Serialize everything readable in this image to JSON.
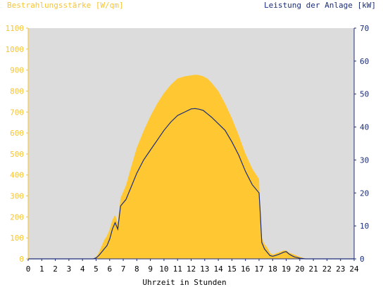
{
  "chart_data": {
    "type": "area",
    "left_axis_title": "Bestrahlungsstärke [W/qm]",
    "right_axis_title": "Leistung der Anlage [kW]",
    "xlabel": "Uhrzeit in Stunden",
    "x_range": [
      0,
      24
    ],
    "x_ticks": [
      0,
      1,
      2,
      3,
      4,
      5,
      6,
      7,
      8,
      9,
      10,
      11,
      12,
      13,
      14,
      15,
      16,
      17,
      18,
      19,
      20,
      21,
      22,
      23,
      24
    ],
    "y_left_range": [
      0,
      1100
    ],
    "y_left_ticks": [
      0,
      100,
      200,
      300,
      400,
      500,
      600,
      700,
      800,
      900,
      1000,
      1100
    ],
    "y_right_range": [
      0,
      70
    ],
    "y_right_ticks": [
      0,
      10,
      20,
      30,
      40,
      50,
      60,
      70
    ],
    "grid": false,
    "colors": {
      "irradiance": "#ffc832",
      "power": "#1b2d78",
      "plot_bg": "#dcdcdc"
    },
    "series": [
      {
        "name": "Bestrahlungsstärke [W/qm]",
        "axis": "left",
        "type": "area",
        "x": [
          0,
          4.8,
          5.0,
          5.2,
          5.4,
          5.6,
          5.8,
          6.0,
          6.2,
          6.4,
          6.6,
          6.8,
          7.0,
          7.2,
          7.5,
          8.0,
          8.5,
          9.0,
          9.5,
          10.0,
          10.5,
          11.0,
          11.5,
          12.0,
          12.3,
          12.6,
          12.9,
          13.2,
          13.5,
          14.0,
          14.5,
          15.0,
          15.5,
          16.0,
          16.5,
          17.0,
          17.1,
          17.2,
          17.4,
          17.6,
          17.8,
          18.0,
          18.2,
          18.4,
          18.6,
          18.8,
          19.0,
          19.2,
          19.4,
          19.6,
          19.8,
          20.0,
          20.2,
          20.4,
          20.6,
          21.0,
          24
        ],
        "values": [
          0,
          0,
          10,
          30,
          60,
          90,
          110,
          140,
          185,
          210,
          170,
          290,
          320,
          350,
          420,
          530,
          610,
          680,
          740,
          790,
          830,
          860,
          870,
          875,
          878,
          876,
          870,
          860,
          840,
          800,
          740,
          670,
          590,
          500,
          430,
          380,
          180,
          100,
          70,
          55,
          30,
          20,
          25,
          30,
          35,
          40,
          40,
          30,
          25,
          20,
          15,
          10,
          5,
          2,
          0,
          0,
          0
        ]
      },
      {
        "name": "Leistung der Anlage [kW]",
        "axis": "right",
        "type": "line",
        "x": [
          0,
          4.8,
          5.0,
          5.2,
          5.4,
          5.6,
          5.8,
          6.0,
          6.2,
          6.4,
          6.6,
          6.8,
          7.0,
          7.2,
          7.5,
          8.0,
          8.5,
          9.0,
          9.5,
          10.0,
          10.5,
          11.0,
          11.5,
          12.0,
          12.3,
          12.6,
          12.9,
          13.2,
          13.5,
          14.0,
          14.5,
          15.0,
          15.5,
          16.0,
          16.5,
          17.0,
          17.1,
          17.2,
          17.4,
          17.6,
          17.8,
          18.0,
          18.2,
          18.4,
          18.6,
          18.8,
          19.0,
          19.2,
          19.4,
          19.6,
          19.8,
          20.0,
          20.2,
          20.4,
          20.6,
          21.0,
          24
        ],
        "values": [
          0,
          0,
          0.3,
          1,
          2,
          3,
          4,
          6,
          9,
          11,
          9,
          16,
          17,
          18,
          21,
          26,
          30,
          33,
          36,
          39,
          41.5,
          43.5,
          44.5,
          45.5,
          45.6,
          45.4,
          45,
          44,
          43,
          41,
          39,
          35.5,
          31.5,
          26.5,
          22.5,
          20,
          13,
          5,
          3,
          2,
          1,
          0.8,
          1,
          1.3,
          1.6,
          2,
          2.2,
          1.5,
          1,
          0.6,
          0.4,
          0.2,
          0.1,
          0,
          0,
          0,
          0
        ]
      }
    ]
  }
}
